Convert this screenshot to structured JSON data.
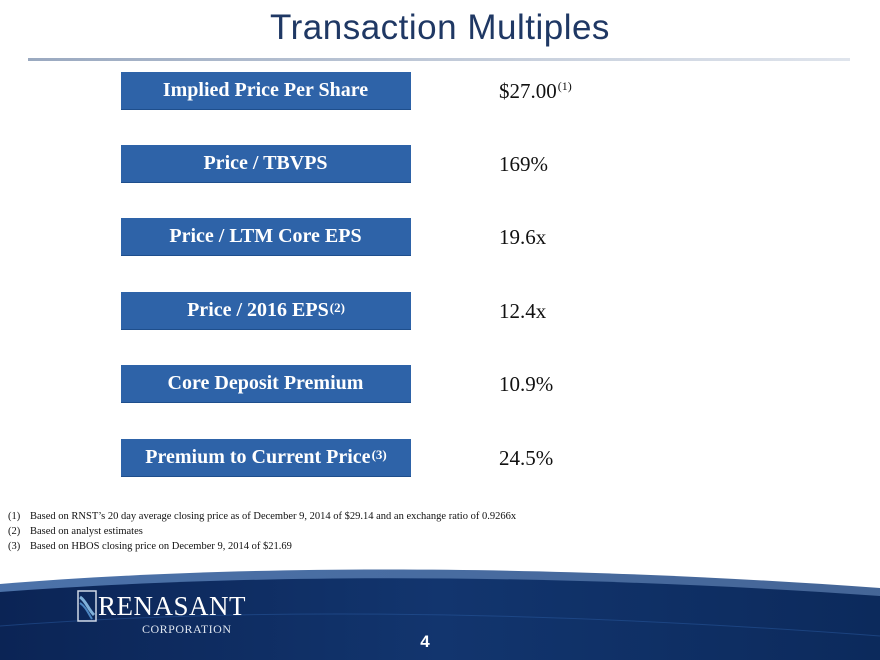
{
  "title": "Transaction Multiples",
  "multiples": [
    {
      "label": "Implied Price Per Share",
      "label_sup": "",
      "value": "$27.00",
      "value_sup": "(1)"
    },
    {
      "label": "Price / TBVPS",
      "label_sup": "",
      "value": "169%",
      "value_sup": ""
    },
    {
      "label": "Price / LTM Core EPS",
      "label_sup": "",
      "value": "19.6x",
      "value_sup": ""
    },
    {
      "label": "Price / 2016 EPS",
      "label_sup": "(2)",
      "value": "12.4x",
      "value_sup": ""
    },
    {
      "label": "Core Deposit Premium",
      "label_sup": "",
      "value": "10.9%",
      "value_sup": ""
    },
    {
      "label": "Premium to Current Price",
      "label_sup": "(3)",
      "value": "24.5%",
      "value_sup": ""
    }
  ],
  "footnotes": [
    {
      "num": "(1)",
      "text": "Based on RNST’s 20 day average closing price as of December 9, 2014 of $29.14 and an exchange ratio of 0.9266x"
    },
    {
      "num": "(2)",
      "text": "Based on analyst estimates"
    },
    {
      "num": "(3)",
      "text": "Based on HBOS closing price on December 9, 2014 of $21.69"
    }
  ],
  "logo": {
    "name": "RENASANT",
    "subtitle": "CORPORATION"
  },
  "page_number": "4",
  "colors": {
    "title": "#1f3864",
    "label_box": "#2e63a8",
    "footer_dark": "#0e2a5c"
  }
}
